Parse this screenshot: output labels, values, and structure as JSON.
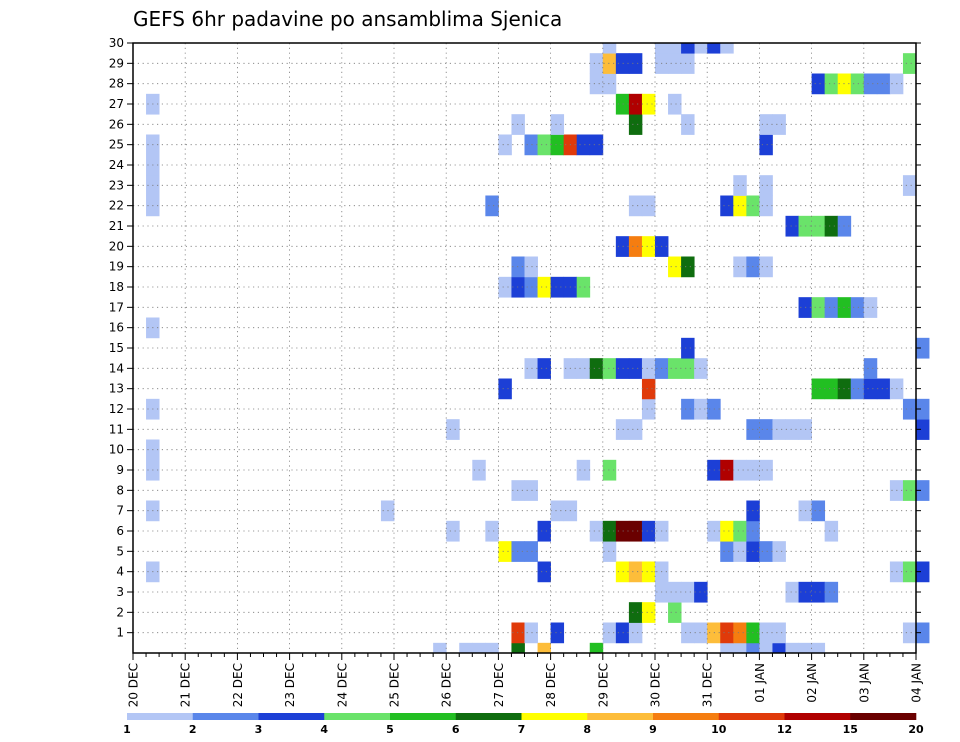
{
  "chart_data": {
    "type": "heatmap",
    "title": "GEFS 6hr padavine po ansamblima Sjenica",
    "xlabel": "",
    "ylabel": "",
    "x_ticks": [
      "20 DEC",
      "21 DEC",
      "22 DEC",
      "23 DEC",
      "24 DEC",
      "25 DEC",
      "26 DEC",
      "27 DEC",
      "28 DEC",
      "29 DEC",
      "30 DEC",
      "31 DEC",
      "01 JAN",
      "02 JAN",
      "03 JAN",
      "04 JAN"
    ],
    "y_ticks": [
      "1",
      "2",
      "3",
      "4",
      "5",
      "6",
      "7",
      "8",
      "9",
      "10",
      "11",
      "12",
      "13",
      "14",
      "15",
      "16",
      "17",
      "18",
      "19",
      "20",
      "21",
      "22",
      "23",
      "24",
      "25",
      "26",
      "27",
      "28",
      "29",
      "30"
    ],
    "x_range": [
      0,
      60
    ],
    "y_range": [
      0,
      30
    ],
    "grid": true,
    "levels_label": [
      "1",
      "2",
      "3",
      "4",
      "5",
      "6",
      "7",
      "8",
      "9",
      "10",
      "12",
      "15",
      "20"
    ],
    "colors": [
      "#b3c6f5",
      "#5a86ea",
      "#1c3fd6",
      "#6ae36a",
      "#22bf22",
      "#0f6d0f",
      "#ffff00",
      "#fdbd3a",
      "#f57d10",
      "#e03a0a",
      "#b00000",
      "#6a0000"
    ],
    "cells": [
      [
        23,
        -1,
        1
      ],
      [
        26,
        -1,
        1
      ],
      [
        27,
        -1,
        1
      ],
      [
        29,
        -1,
        6
      ],
      [
        31,
        -1,
        8
      ],
      [
        35,
        -1,
        5
      ],
      [
        45,
        -1,
        1
      ],
      [
        46,
        -1,
        1
      ],
      [
        47,
        -1,
        2
      ],
      [
        48,
        -1,
        1
      ],
      [
        49,
        -1,
        3
      ],
      [
        50,
        -1,
        1
      ],
      [
        51,
        -1,
        1
      ],
      [
        52,
        -1,
        1
      ],
      [
        29,
        0,
        10
      ],
      [
        30,
        0,
        1
      ],
      [
        32,
        0,
        3
      ],
      [
        36,
        0,
        1
      ],
      [
        37,
        0,
        3
      ],
      [
        38,
        0,
        1
      ],
      [
        42,
        0,
        1
      ],
      [
        43,
        0,
        1
      ],
      [
        44,
        0,
        8
      ],
      [
        45,
        0,
        10
      ],
      [
        46,
        0,
        9
      ],
      [
        47,
        0,
        5
      ],
      [
        48,
        0,
        1
      ],
      [
        49,
        0,
        1
      ],
      [
        59,
        0,
        1
      ],
      [
        60,
        0,
        2
      ],
      [
        38,
        1,
        6
      ],
      [
        39,
        1,
        7
      ],
      [
        41,
        1,
        4
      ],
      [
        40,
        2,
        1
      ],
      [
        41,
        2,
        1
      ],
      [
        42,
        2,
        1
      ],
      [
        43,
        2,
        3
      ],
      [
        50,
        2,
        1
      ],
      [
        51,
        2,
        3
      ],
      [
        52,
        2,
        3
      ],
      [
        53,
        2,
        2
      ],
      [
        31,
        3,
        3
      ],
      [
        37,
        3,
        7
      ],
      [
        38,
        3,
        8
      ],
      [
        39,
        3,
        7
      ],
      [
        40,
        3,
        1
      ],
      [
        58,
        3,
        1
      ],
      [
        59,
        3,
        4
      ],
      [
        60,
        3,
        3
      ],
      [
        28,
        4,
        7
      ],
      [
        29,
        4,
        2
      ],
      [
        30,
        4,
        2
      ],
      [
        36,
        4,
        1
      ],
      [
        45,
        4,
        2
      ],
      [
        46,
        4,
        1
      ],
      [
        47,
        4,
        3
      ],
      [
        48,
        4,
        2
      ],
      [
        49,
        4,
        1
      ],
      [
        27,
        5,
        1
      ],
      [
        31,
        5,
        3
      ],
      [
        35,
        5,
        1
      ],
      [
        36,
        5,
        6
      ],
      [
        37,
        5,
        12
      ],
      [
        38,
        5,
        12
      ],
      [
        39,
        5,
        3
      ],
      [
        40,
        5,
        1
      ],
      [
        44,
        5,
        1
      ],
      [
        45,
        5,
        7
      ],
      [
        46,
        5,
        4
      ],
      [
        47,
        5,
        2
      ],
      [
        53,
        5,
        1
      ],
      [
        32,
        6,
        1
      ],
      [
        33,
        6,
        1
      ],
      [
        47,
        6,
        3
      ],
      [
        51,
        6,
        1
      ],
      [
        52,
        6,
        2
      ],
      [
        29,
        7,
        1
      ],
      [
        30,
        7,
        1
      ],
      [
        58,
        7,
        1
      ],
      [
        59,
        7,
        4
      ],
      [
        60,
        7,
        2
      ],
      [
        34,
        8,
        1
      ],
      [
        36,
        8,
        4
      ],
      [
        44,
        8,
        3
      ],
      [
        45,
        8,
        11
      ],
      [
        46,
        8,
        1
      ],
      [
        47,
        8,
        1
      ],
      [
        48,
        8,
        1
      ],
      [
        37,
        10,
        1
      ],
      [
        38,
        10,
        1
      ],
      [
        47,
        10,
        2
      ],
      [
        48,
        10,
        2
      ],
      [
        49,
        10,
        1
      ],
      [
        50,
        10,
        1
      ],
      [
        51,
        10,
        1
      ],
      [
        60,
        10,
        3
      ],
      [
        39,
        11,
        1
      ],
      [
        42,
        11,
        2
      ],
      [
        43,
        11,
        1
      ],
      [
        44,
        11,
        2
      ],
      [
        59,
        11,
        2
      ],
      [
        60,
        11,
        2
      ],
      [
        28,
        12,
        3
      ],
      [
        39,
        12,
        10
      ],
      [
        52,
        12,
        5
      ],
      [
        53,
        12,
        5
      ],
      [
        54,
        12,
        6
      ],
      [
        55,
        12,
        2
      ],
      [
        56,
        12,
        3
      ],
      [
        57,
        12,
        3
      ],
      [
        58,
        12,
        1
      ],
      [
        30,
        13,
        1
      ],
      [
        31,
        13,
        3
      ],
      [
        33,
        13,
        1
      ],
      [
        34,
        13,
        1
      ],
      [
        35,
        13,
        6
      ],
      [
        36,
        13,
        4
      ],
      [
        37,
        13,
        3
      ],
      [
        38,
        13,
        3
      ],
      [
        39,
        13,
        1
      ],
      [
        40,
        13,
        2
      ],
      [
        41,
        13,
        4
      ],
      [
        42,
        13,
        4
      ],
      [
        43,
        13,
        1
      ],
      [
        56,
        13,
        2
      ],
      [
        42,
        14,
        3
      ],
      [
        60,
        14,
        2
      ],
      [
        51,
        16,
        3
      ],
      [
        52,
        16,
        4
      ],
      [
        53,
        16,
        2
      ],
      [
        54,
        16,
        5
      ],
      [
        55,
        16,
        2
      ],
      [
        56,
        16,
        1
      ],
      [
        28,
        17,
        1
      ],
      [
        29,
        17,
        3
      ],
      [
        30,
        17,
        2
      ],
      [
        31,
        17,
        7
      ],
      [
        32,
        17,
        3
      ],
      [
        33,
        17,
        3
      ],
      [
        34,
        17,
        4
      ],
      [
        29,
        18,
        2
      ],
      [
        30,
        18,
        1
      ],
      [
        41,
        18,
        7
      ],
      [
        42,
        18,
        6
      ],
      [
        46,
        18,
        1
      ],
      [
        47,
        18,
        2
      ],
      [
        48,
        18,
        1
      ],
      [
        37,
        19,
        3
      ],
      [
        38,
        19,
        9
      ],
      [
        39,
        19,
        7
      ],
      [
        40,
        19,
        3
      ],
      [
        50,
        20,
        3
      ],
      [
        51,
        20,
        4
      ],
      [
        52,
        20,
        4
      ],
      [
        53,
        20,
        6
      ],
      [
        54,
        20,
        2
      ],
      [
        27,
        21,
        2
      ],
      [
        38,
        21,
        1
      ],
      [
        39,
        21,
        1
      ],
      [
        45,
        21,
        3
      ],
      [
        46,
        21,
        7
      ],
      [
        47,
        21,
        4
      ],
      [
        48,
        21,
        1
      ],
      [
        46,
        22,
        1
      ],
      [
        48,
        22,
        1
      ],
      [
        59,
        22,
        1
      ],
      [
        28,
        24,
        1
      ],
      [
        30,
        24,
        2
      ],
      [
        31,
        24,
        4
      ],
      [
        32,
        24,
        5
      ],
      [
        33,
        24,
        10
      ],
      [
        34,
        24,
        3
      ],
      [
        35,
        24,
        3
      ],
      [
        48,
        24,
        3
      ],
      [
        29,
        25,
        1
      ],
      [
        32,
        25,
        1
      ],
      [
        38,
        25,
        6
      ],
      [
        42,
        25,
        1
      ],
      [
        48,
        25,
        1
      ],
      [
        49,
        25,
        1
      ],
      [
        37,
        26,
        5
      ],
      [
        38,
        26,
        11
      ],
      [
        39,
        26,
        7
      ],
      [
        41,
        26,
        1
      ],
      [
        35,
        27,
        1
      ],
      [
        36,
        27,
        1
      ],
      [
        52,
        27,
        3
      ],
      [
        53,
        27,
        4
      ],
      [
        54,
        27,
        7
      ],
      [
        55,
        27,
        4
      ],
      [
        56,
        27,
        2
      ],
      [
        57,
        27,
        2
      ],
      [
        58,
        27,
        1
      ],
      [
        35,
        28,
        1
      ],
      [
        36,
        28,
        8
      ],
      [
        37,
        28,
        3
      ],
      [
        38,
        28,
        3
      ],
      [
        40,
        28,
        1
      ],
      [
        41,
        28,
        1
      ],
      [
        42,
        28,
        1
      ],
      [
        59,
        28,
        4
      ],
      [
        36,
        29,
        1
      ],
      [
        40,
        29,
        1
      ],
      [
        41,
        29,
        1
      ],
      [
        43,
        29,
        1
      ],
      [
        44,
        29,
        3
      ],
      [
        45,
        29,
        1
      ],
      [
        1,
        26,
        1
      ],
      [
        1,
        15,
        1
      ],
      [
        1,
        11,
        1
      ],
      [
        1,
        9,
        1
      ],
      [
        1,
        8,
        1
      ],
      [
        1,
        6,
        1
      ],
      [
        1,
        3,
        1
      ],
      [
        1,
        24,
        1
      ],
      [
        1,
        23,
        1
      ],
      [
        1,
        22,
        1
      ],
      [
        1,
        21,
        1
      ],
      [
        19,
        6,
        1
      ],
      [
        24,
        10,
        1
      ],
      [
        24,
        5,
        1
      ],
      [
        25,
        -1,
        1
      ],
      [
        26,
        8,
        1
      ],
      [
        42,
        29,
        3
      ]
    ]
  }
}
